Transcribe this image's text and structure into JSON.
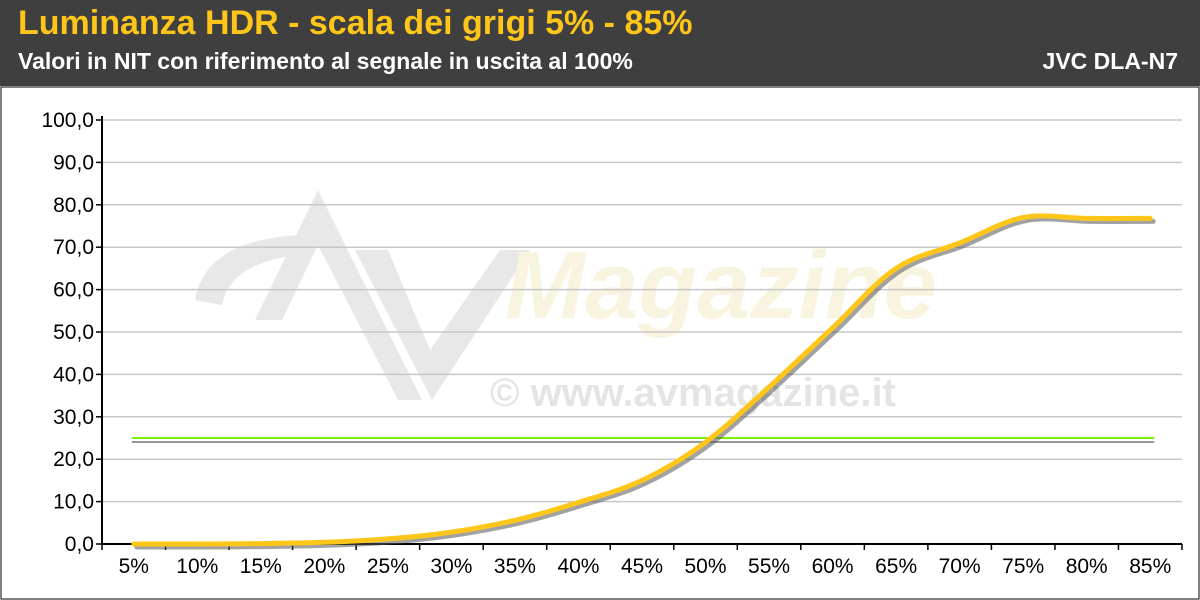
{
  "header": {
    "title": "Luminanza HDR - scala dei grigi 5% - 85%",
    "subtitle": "Valori in NIT con riferimento al segnale in uscita al 100%",
    "model": "JVC DLA-N7"
  },
  "watermark": {
    "brand": "Magazine",
    "url": "© www.avmagazine.it"
  },
  "colors": {
    "header_bg": "#3f3f3f",
    "title": "#ffc61a",
    "measured_line": "#ffc61a",
    "reference_line": "#7cf000",
    "grid": "#c8c8c8"
  },
  "chart_data": {
    "type": "line",
    "categories": [
      "5%",
      "10%",
      "15%",
      "20%",
      "25%",
      "30%",
      "35%",
      "40%",
      "45%",
      "50%",
      "55%",
      "60%",
      "65%",
      "70%",
      "75%",
      "80%",
      "85%"
    ],
    "ylim": [
      0,
      100
    ],
    "yticks": [
      "0,0",
      "10,0",
      "20,0",
      "30,0",
      "40,0",
      "50,0",
      "60,0",
      "70,0",
      "80,0",
      "90,0",
      "100,0"
    ],
    "grid": true,
    "legend": "none",
    "series": [
      {
        "values": [
          0.0,
          0.0,
          0.1,
          0.4,
          1.2,
          2.8,
          5.6,
          9.8,
          15.0,
          24.0,
          37.0,
          51.0,
          65.0,
          71.0,
          77.0,
          76.8,
          76.8
        ]
      },
      {
        "values": [
          25.0,
          25.0,
          25.0,
          25.0,
          25.0,
          25.0,
          25.0,
          25.0,
          25.0,
          25.0,
          25.0,
          25.0,
          25.0,
          25.0,
          25.0,
          25.0,
          25.0
        ]
      }
    ]
  }
}
